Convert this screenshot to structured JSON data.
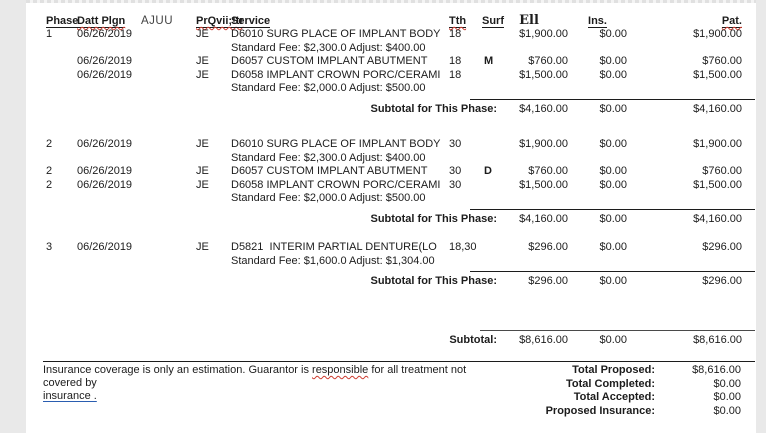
{
  "window": {
    "bg_color": "#ffffff",
    "gutter_color": "#e9e9e9",
    "text_color": "#1c1c1c",
    "rule_color": "#1c1c1c",
    "squiggle_color": "#cc3b2f",
    "link_underline_color": "#2a5db0"
  },
  "table": {
    "columns": [
      {
        "key": "phase",
        "label": "Phase",
        "decor": "underline"
      },
      {
        "key": "date",
        "label": "Datt Plgn",
        "decor": "underline squiggle"
      },
      {
        "key": "extra",
        "label": "AJUU",
        "decor": "plain-gray"
      },
      {
        "key": "prov",
        "label": "PrQvii;!tr",
        "decor": "underline squiggle"
      },
      {
        "key": "service",
        "label": "Service",
        "decor": "underline"
      },
      {
        "key": "tth",
        "label": "Tth",
        "decor": "underline squiggle"
      },
      {
        "key": "surf",
        "label": "Surf",
        "decor": "underline"
      },
      {
        "key": "fee",
        "label": "Ell",
        "decor": "serif-bold"
      },
      {
        "key": "ins",
        "label": "Ins.",
        "decor": "underline"
      },
      {
        "key": "pat",
        "label": "Pat.",
        "decor": "underline squiggle"
      }
    ],
    "rows": [
      {
        "type": "item",
        "phase": "1",
        "date": "06/26/2019",
        "prov": "JE",
        "service": "D6010 SURG PLACE OF IMPLANT BODY",
        "tth": "18",
        "surf": "",
        "fee": "$1,900.00",
        "ins": "$0.00",
        "pat": "$1,900.00"
      },
      {
        "type": "note",
        "service": "Standard Fee: $2,300.0 Adjust: $400.00"
      },
      {
        "type": "item",
        "phase": "",
        "date": "06/26/2019",
        "prov": "JE",
        "service": "D6057 CUSTOM IMPLANT ABUTMENT",
        "tth": "18",
        "surf": "M",
        "fee": "$760.00",
        "ins": "$0.00",
        "pat": "$760.00"
      },
      {
        "type": "item",
        "phase": "",
        "date": "06/26/2019",
        "prov": "JE",
        "service": "D6058 IMPLANT CROWN PORC/CERAMI",
        "tth": "18",
        "surf": "",
        "fee": "$1,500.00",
        "ins": "$0.00",
        "pat": "$1,500.00"
      },
      {
        "type": "note",
        "service": "Standard Fee: $2,000.0 Adjust: $500.00"
      },
      {
        "type": "subtotal",
        "label": "Subtotal for This Phase:",
        "fee": "$4,160.00",
        "ins": "$0.00",
        "pat": "$4,160.00"
      },
      {
        "type": "gap",
        "h": 22
      },
      {
        "type": "item",
        "phase": "2",
        "date": "06/26/2019",
        "prov": "JE",
        "service": "D6010 SURG PLACE OF IMPLANT BODY",
        "tth": "30",
        "surf": "",
        "fee": "$1,900.00",
        "ins": "$0.00",
        "pat": "$1,900.00"
      },
      {
        "type": "note",
        "service": "Standard Fee: $2,300.0 Adjust: $400.00"
      },
      {
        "type": "item",
        "phase": "2",
        "date": "06/26/2019",
        "prov": "JE",
        "service": "D6057 CUSTOM IMPLANT ABUTMENT",
        "tth": "30",
        "surf": "D",
        "fee": "$760.00",
        "ins": "$0.00",
        "pat": "$760.00"
      },
      {
        "type": "item",
        "phase": "2",
        "date": "06/26/2019",
        "prov": "JE",
        "service": "D6058 IMPLANT CROWN PORC/CERAMI",
        "tth": "30",
        "surf": "",
        "fee": "$1,500.00",
        "ins": "$0.00",
        "pat": "$1,500.00"
      },
      {
        "type": "note",
        "service": "Standard Fee: $2,000.0 Adjust: $500.00"
      },
      {
        "type": "subtotal",
        "label": "Subtotal for This Phase:",
        "fee": "$4,160.00",
        "ins": "$0.00",
        "pat": "$4,160.00"
      },
      {
        "type": "gap",
        "h": 15
      },
      {
        "type": "item",
        "phase": "3",
        "date": "06/26/2019",
        "prov": "JE",
        "service": "D5821  INTERIM PARTIAL DENTURE(LO",
        "tth": "18,30",
        "surf": "",
        "fee": "$296.00",
        "ins": "$0.00",
        "pat": "$296.00"
      },
      {
        "type": "note",
        "service": "Standard Fee: $1,600.0 Adjust: $1,304.00"
      },
      {
        "type": "subtotal",
        "label": "Subtotal for This Phase:",
        "fee": "$296.00",
        "ins": "$0.00",
        "pat": "$296.00"
      },
      {
        "type": "gap",
        "h": 38
      },
      {
        "type": "grand",
        "label": "Subtotal:",
        "fee": "$8,616.00",
        "ins": "$0.00",
        "pat": "$8,616.00"
      }
    ]
  },
  "footer": {
    "disclaimer_line1": [
      {
        "text": "Insurance coverage is only an estimation. Guarantor is ",
        "style": "plain"
      },
      {
        "text": "responsible",
        "style": "misspelled"
      },
      {
        "text": " for all treatment not covered by",
        "style": "plain"
      }
    ],
    "disclaimer_line2": [
      {
        "text": "insurance .",
        "style": "link"
      }
    ],
    "totals": [
      {
        "label": "Total Proposed:",
        "value": "$8,616.00"
      },
      {
        "label": "Total Completed:",
        "value": "$0.00"
      },
      {
        "label": "Total Accepted:",
        "value": "$0.00"
      },
      {
        "label": "Proposed Insurance:",
        "value": "$0.00"
      }
    ]
  }
}
